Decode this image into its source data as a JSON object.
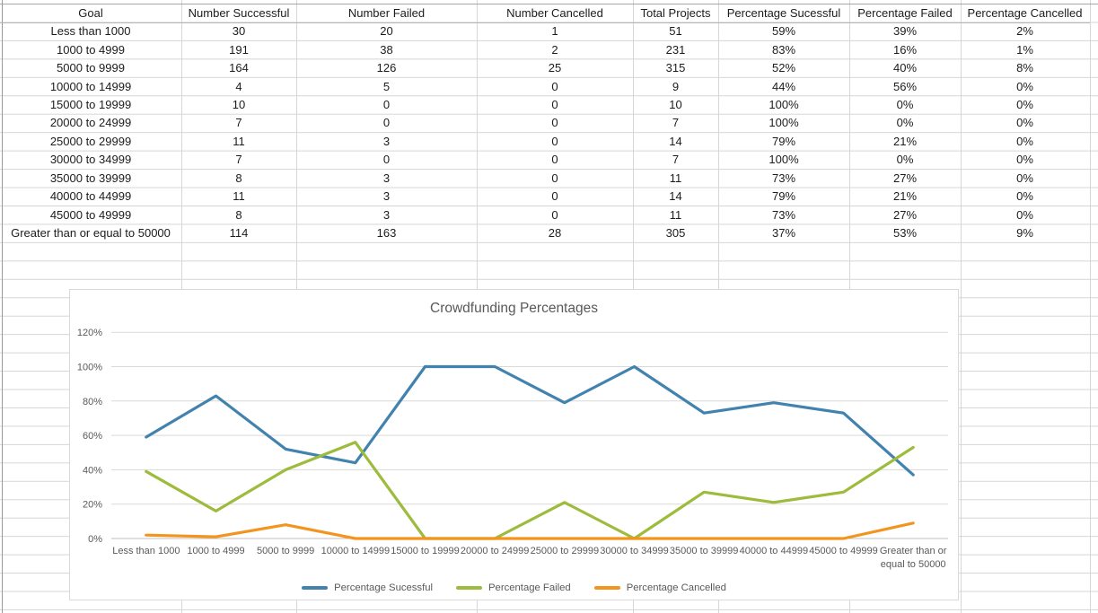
{
  "table": {
    "headers": [
      "Goal",
      "Number Successful",
      "Number Failed",
      "Number Cancelled",
      "Total Projects",
      "Percentage Sucessful",
      "Percentage Failed",
      "Percentage Cancelled"
    ],
    "rows": [
      [
        "Less than 1000",
        "30",
        "20",
        "1",
        "51",
        "59%",
        "39%",
        "2%"
      ],
      [
        "1000 to 4999",
        "191",
        "38",
        "2",
        "231",
        "83%",
        "16%",
        "1%"
      ],
      [
        "5000 to 9999",
        "164",
        "126",
        "25",
        "315",
        "52%",
        "40%",
        "8%"
      ],
      [
        "10000 to 14999",
        "4",
        "5",
        "0",
        "9",
        "44%",
        "56%",
        "0%"
      ],
      [
        "15000 to 19999",
        "10",
        "0",
        "0",
        "10",
        "100%",
        "0%",
        "0%"
      ],
      [
        "20000 to 24999",
        "7",
        "0",
        "0",
        "7",
        "100%",
        "0%",
        "0%"
      ],
      [
        "25000 to 29999",
        "11",
        "3",
        "0",
        "14",
        "79%",
        "21%",
        "0%"
      ],
      [
        "30000 to 34999",
        "7",
        "0",
        "0",
        "7",
        "100%",
        "0%",
        "0%"
      ],
      [
        "35000 to 39999",
        "8",
        "3",
        "0",
        "11",
        "73%",
        "27%",
        "0%"
      ],
      [
        "40000 to 44999",
        "11",
        "3",
        "0",
        "14",
        "79%",
        "21%",
        "0%"
      ],
      [
        "45000 to 49999",
        "8",
        "3",
        "0",
        "11",
        "73%",
        "27%",
        "0%"
      ],
      [
        "Greater than or equal to 50000",
        "114",
        "163",
        "28",
        "305",
        "37%",
        "53%",
        "9%"
      ]
    ]
  },
  "chart_data": {
    "type": "line",
    "title": "Crowdfunding Percentages",
    "categories": [
      "Less than 1000",
      "1000 to 4999",
      "5000 to 9999",
      "10000 to 14999",
      "15000 to 19999",
      "20000 to 24999",
      "25000 to 29999",
      "30000 to 34999",
      "35000 to 39999",
      "40000 to 44999",
      "45000 to 49999",
      "Greater than or equal to 50000"
    ],
    "series": [
      {
        "name": "Percentage Sucessful",
        "color": "#4183AE",
        "values": [
          59,
          83,
          52,
          44,
          100,
          100,
          79,
          100,
          73,
          79,
          73,
          37
        ]
      },
      {
        "name": "Percentage Failed",
        "color": "#9DBB3C",
        "values": [
          39,
          16,
          40,
          56,
          0,
          0,
          21,
          0,
          27,
          21,
          27,
          53
        ]
      },
      {
        "name": "Percentage Cancelled",
        "color": "#F3941E",
        "values": [
          2,
          1,
          8,
          0,
          0,
          0,
          0,
          0,
          0,
          0,
          0,
          9
        ]
      }
    ],
    "ylim": [
      0,
      120
    ],
    "ytick_step": 20,
    "ytick_labels": [
      "0%",
      "20%",
      "40%",
      "60%",
      "80%",
      "100%",
      "120%"
    ],
    "grid": true,
    "legend_position": "bottom"
  }
}
